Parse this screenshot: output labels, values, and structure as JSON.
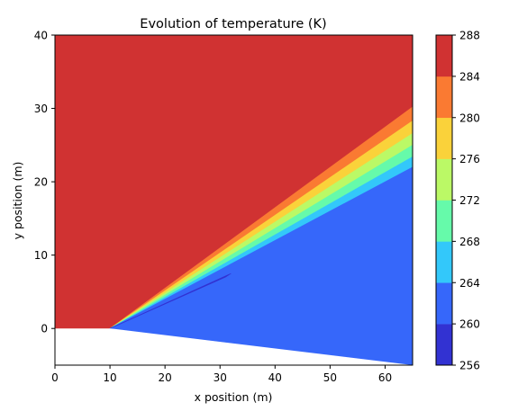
{
  "chart_data": {
    "type": "contourf",
    "title": "Evolution of temperature (K)",
    "xlabel": "x position (m)",
    "ylabel": "y position (m)",
    "xlim": [
      0,
      65
    ],
    "ylim": [
      -5,
      40
    ],
    "x_ticks": [
      0,
      10,
      20,
      30,
      40,
      50,
      60
    ],
    "y_ticks": [
      0,
      10,
      20,
      30,
      40
    ],
    "colorbar": {
      "levels": [
        256,
        260,
        264,
        268,
        272,
        276,
        280,
        284,
        288
      ],
      "tick_labels": [
        "256",
        "260",
        "264",
        "268",
        "272",
        "276",
        "280",
        "284",
        "288"
      ],
      "band_colors": [
        "#3232d2",
        "#3667fa",
        "#33c8fa",
        "#66faaa",
        "#bbf966",
        "#fad23a",
        "#fa7a32",
        "#d03232"
      ]
    },
    "regions": [
      {
        "band": "284-288",
        "polygon": [
          [
            0,
            0
          ],
          [
            10,
            0
          ],
          [
            65,
            30.2
          ],
          [
            65,
            40
          ],
          [
            0,
            40
          ]
        ]
      },
      {
        "band": "280-284",
        "polygon": [
          [
            10,
            0
          ],
          [
            65,
            30.2
          ],
          [
            65,
            28.3
          ]
        ]
      },
      {
        "band": "276-280",
        "polygon": [
          [
            10,
            0
          ],
          [
            65,
            28.3
          ],
          [
            65,
            26.6
          ]
        ]
      },
      {
        "band": "272-276",
        "polygon": [
          [
            10,
            0
          ],
          [
            65,
            26.6
          ],
          [
            65,
            25.0
          ]
        ]
      },
      {
        "band": "268-272",
        "polygon": [
          [
            10,
            0
          ],
          [
            65,
            25.0
          ],
          [
            65,
            23.4
          ]
        ]
      },
      {
        "band": "264-268",
        "polygon": [
          [
            10,
            0
          ],
          [
            65,
            23.4
          ],
          [
            65,
            22.0
          ]
        ]
      },
      {
        "band": "260-264",
        "polygon": [
          [
            10,
            0
          ],
          [
            65,
            22.0
          ],
          [
            65,
            -5
          ],
          [
            10,
            0
          ]
        ]
      },
      {
        "band": "256-260",
        "polygon": [
          [
            10,
            0
          ],
          [
            32,
            7.5
          ],
          [
            31,
            7.0
          ],
          [
            10,
            0
          ]
        ]
      }
    ],
    "undefined_region": [
      [
        0,
        0
      ],
      [
        10,
        0
      ],
      [
        65,
        -5
      ],
      [
        0,
        -5
      ]
    ],
    "grid": false
  }
}
